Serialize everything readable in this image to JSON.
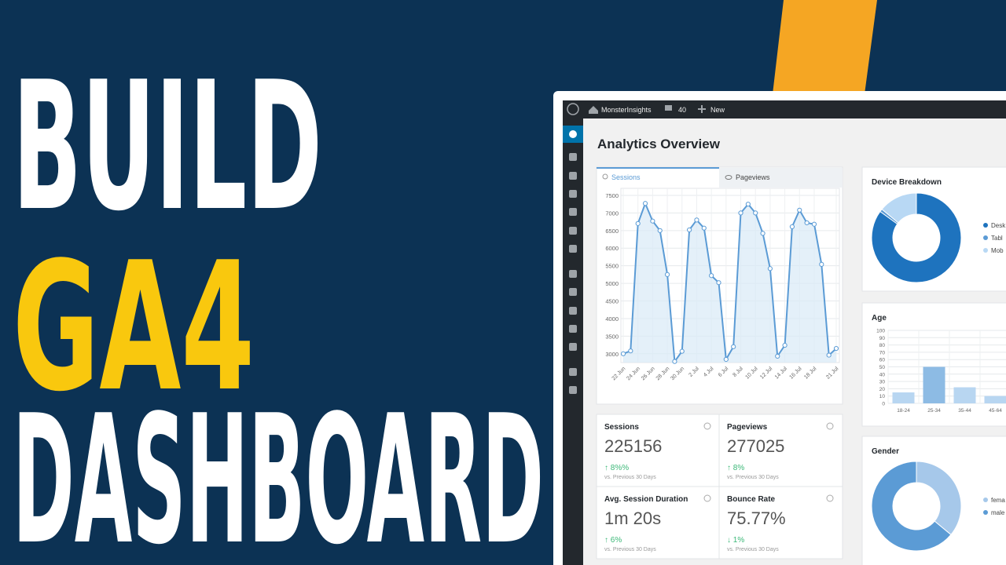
{
  "headline": {
    "lines": [
      "BUILD",
      "GA4",
      "DASHBOARD"
    ]
  },
  "admin_bar": {
    "site": "MonsterInsights",
    "comments": "40",
    "new": "New"
  },
  "page_title": "Analytics Overview",
  "tabs": [
    "Sessions",
    "Pageviews"
  ],
  "chart_data": [
    {
      "type": "line",
      "categories": [
        "22 Jun",
        null,
        "24 Jun",
        null,
        "26 Jun",
        null,
        "28 Jun",
        null,
        "30 Jun",
        null,
        "2 Jul",
        null,
        "4 Jul",
        null,
        "6 Jul",
        null,
        "8 Jul",
        null,
        "10 Jul",
        null,
        "12 Jul",
        null,
        "14 Jul",
        null,
        "16 Jul",
        null,
        "18 Jul",
        null,
        null,
        "21 Jul"
      ],
      "values": [
        3000,
        3080,
        6700,
        7270,
        6770,
        6500,
        5250,
        2780,
        3070,
        6520,
        6800,
        6570,
        5220,
        5020,
        2840,
        3200,
        7000,
        7250,
        7000,
        6420,
        5420,
        2930,
        3240,
        6610,
        7080,
        6720,
        6680,
        5540,
        2960,
        3150
      ],
      "color": "#5b9bd5",
      "ylim": [
        2750,
        7700
      ],
      "yticks": [
        3000,
        3500,
        4000,
        4500,
        5000,
        5500,
        6000,
        6500,
        7000,
        7500
      ],
      "grid": true
    },
    {
      "type": "pie",
      "title": "Device Breakdown",
      "donut": true,
      "categories": [
        "Desk",
        "Tabl",
        "Mob"
      ],
      "values": [
        85,
        1,
        14
      ],
      "colors": [
        "#1e73be",
        "#5b9bd5",
        "#b8d8f4"
      ]
    },
    {
      "type": "bar",
      "title": "Age",
      "categories": [
        "18-24",
        "25-34",
        "35-44",
        "45-64"
      ],
      "values": [
        15,
        50,
        22,
        10
      ],
      "colors": [
        "#b8d6f1",
        "#8dbbe4",
        "#b8d6f1",
        "#b8d6f1"
      ],
      "ylim": [
        0,
        100
      ],
      "yticks": [
        0,
        10,
        20,
        30,
        40,
        50,
        60,
        70,
        80,
        90,
        100
      ],
      "grid": true
    },
    {
      "type": "pie",
      "title": "Gender",
      "donut": true,
      "categories": [
        "fema",
        "male"
      ],
      "values": [
        36,
        64
      ],
      "colors": [
        "#a6c8ea",
        "#5b9bd5"
      ]
    }
  ],
  "stats": [
    {
      "label": "Sessions",
      "value": "225156",
      "change": "↑ 8%%",
      "note": "vs. Previous 30 Days"
    },
    {
      "label": "Pageviews",
      "value": "277025",
      "change": "↑ 8%",
      "note": "vs. Previous 30 Days"
    },
    {
      "label": "Avg. Session Duration",
      "value": "1m 20s",
      "change": "↑ 6%",
      "note": "vs. Previous 30 Days"
    },
    {
      "label": "Bounce Rate",
      "value": "75.77%",
      "change": "↓ 1%",
      "note": "vs. Previous 30 Days"
    }
  ]
}
